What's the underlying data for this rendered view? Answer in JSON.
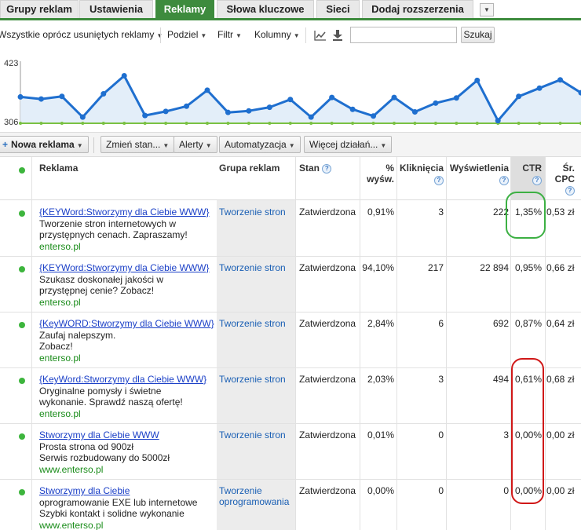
{
  "tabs": [
    "Grupy reklam",
    "Ustawienia",
    "Reklamy",
    "Słowa kluczowe",
    "Sieci",
    "Dodaj rozszerzenia"
  ],
  "tab_more": "▼",
  "filter": {
    "status": "Wszystkie oprócz usuniętych reklamy",
    "segment": "Podziel",
    "filter": "Filtr",
    "columns": "Kolumny",
    "search_value": "",
    "search_button": "Szukaj"
  },
  "chart": {
    "y_max_label": "423",
    "y_min_label": "306",
    "colors": {
      "line": "#1f6fcf",
      "fill": "#e3eef9",
      "baseline": "#7ac143",
      "marker": "#7ac143"
    }
  },
  "chart_data": {
    "type": "area",
    "ylim": [
      306,
      423
    ],
    "values": [
      357,
      353,
      358,
      318,
      363,
      398,
      321,
      329,
      339,
      370,
      327,
      330,
      337,
      352,
      318,
      356,
      333,
      320,
      356,
      328,
      345,
      355,
      389,
      311,
      358,
      374,
      390,
      365
    ]
  },
  "toolbar": {
    "new_ad": "Nowa reklama",
    "change_status": "Zmień stan...",
    "alerts": "Alerty",
    "automation": "Automatyzacja",
    "more_actions": "Więcej działań..."
  },
  "columns": {
    "ad": "Reklama",
    "ad_group": "Grupa reklam",
    "status": "Stan",
    "pct_served_1": "%",
    "pct_served_2": "wyśw.",
    "clicks": "Kliknięcia",
    "impressions": "Wyświetlenia",
    "ctr": "CTR",
    "avg_cpc_1": "Śr.",
    "avg_cpc_2": "CPC",
    "help": "?"
  },
  "rows": [
    {
      "title": "{KEYWord:Stworzymy dla Ciebie WWW}",
      "line1": "Tworzenie stron internetowych w",
      "line2": "przystępnych cenach. Zapraszamy!",
      "url": "enterso.pl",
      "group1": "Tworzenie stron",
      "group2": "",
      "status": "Zatwierdzona",
      "pct": "0,91%",
      "clicks": "3",
      "impr": "222",
      "ctr": "1,35%",
      "cpc": "0,53 zł"
    },
    {
      "title": "{KEYWord:Stworzymy dla Ciebie WWW}",
      "line1": "Szukasz doskonałej jakości w",
      "line2": "przystępnej cenie? Zobacz!",
      "url": "enterso.pl",
      "group1": "Tworzenie stron",
      "group2": "",
      "status": "Zatwierdzona",
      "pct": "94,10%",
      "clicks": "217",
      "impr": "22 894",
      "ctr": "0,95%",
      "cpc": "0,66 zł"
    },
    {
      "title": "{KeyWORD:Stworzymy dla Ciebie WWW}",
      "line1": "Zaufaj nalepszym.",
      "line2": "Zobacz!",
      "url": "enterso.pl",
      "group1": "Tworzenie stron",
      "group2": "",
      "status": "Zatwierdzona",
      "pct": "2,84%",
      "clicks": "6",
      "impr": "692",
      "ctr": "0,87%",
      "cpc": "0,64 zł"
    },
    {
      "title": "{KeyWord:Stworzymy dla Ciebie WWW}",
      "line1": "Oryginalne pomysły i świetne",
      "line2": "wykonanie. Sprawdź naszą ofertę!",
      "url": "enterso.pl",
      "group1": "Tworzenie stron",
      "group2": "",
      "status": "Zatwierdzona",
      "pct": "2,03%",
      "clicks": "3",
      "impr": "494",
      "ctr": "0,61%",
      "cpc": "0,68 zł"
    },
    {
      "title": "Stworzymy dla Ciebie WWW",
      "line1": "Prosta strona od 900zł",
      "line2": "Serwis rozbudowany do 5000zł",
      "url": "www.enterso.pl",
      "group1": "Tworzenie stron",
      "group2": "",
      "status": "Zatwierdzona",
      "pct": "0,01%",
      "clicks": "0",
      "impr": "3",
      "ctr": "0,00%",
      "cpc": "0,00 zł"
    },
    {
      "title": "Stworzymy dla Ciebie",
      "line1": "oprogramowanie EXE lub internetowe",
      "line2": "Szybki kontakt i solidne wykonanie",
      "url": "www.enterso.pl",
      "group1": "Tworzenie",
      "group2": "oprogramowania",
      "status": "Zatwierdzona",
      "pct": "0,00%",
      "clicks": "0",
      "impr": "0",
      "ctr": "0,00%",
      "cpc": "0,00 zł"
    }
  ]
}
